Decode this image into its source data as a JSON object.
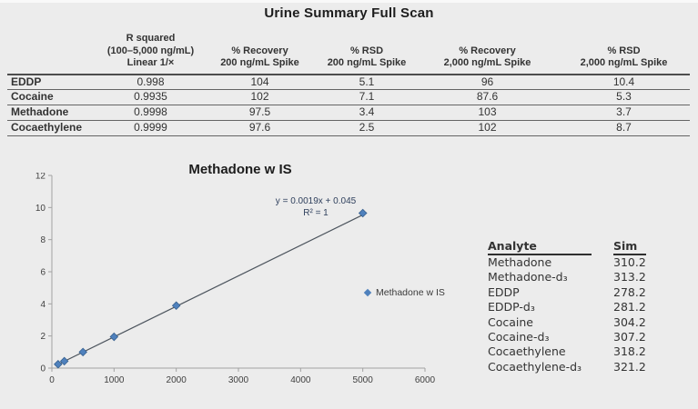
{
  "page": {
    "title": "Urine Summary Full Scan",
    "background_color": "#ececec"
  },
  "summary_table": {
    "col_headers": [
      "R squared\n(100–5,000 ng/mL)\nLinear 1/×",
      "% Recovery\n200 ng/mL Spike",
      "% RSD\n200 ng/mL Spike",
      "% Recovery\n2,000 ng/mL Spike",
      "% RSD\n2,000 ng/mL Spike"
    ],
    "rows": [
      {
        "label": "EDDP",
        "values": [
          "0.998",
          "104",
          "5.1",
          "96",
          "10.4"
        ]
      },
      {
        "label": "Cocaine",
        "values": [
          "0.9935",
          "102",
          "7.1",
          "87.6",
          "5.3"
        ]
      },
      {
        "label": "Methadone",
        "values": [
          "0.9998",
          "97.5",
          "3.4",
          "103",
          "3.7"
        ]
      },
      {
        "label": "Cocaethylene",
        "values": [
          "0.9999",
          "97.6",
          "2.5",
          "102",
          "8.7"
        ]
      }
    ]
  },
  "chart_data": {
    "type": "scatter",
    "title": "Methadone w IS",
    "x": [
      100,
      200,
      500,
      1000,
      2000,
      5000
    ],
    "y": [
      0.24,
      0.43,
      1.0,
      1.95,
      3.89,
      9.65
    ],
    "trendline": {
      "slope": 0.0019,
      "intercept": 0.045,
      "equation": "y = 0.0019x + 0.045",
      "r2": "R² = 1"
    },
    "xlim": [
      0,
      6000
    ],
    "ylim": [
      0,
      12
    ],
    "x_ticks": [
      0,
      1000,
      2000,
      3000,
      4000,
      5000,
      6000
    ],
    "y_ticks": [
      0,
      2,
      4,
      6,
      8,
      10,
      12
    ],
    "legend": "Methadone w IS",
    "legend_position": "right",
    "grid": false,
    "marker": "diamond",
    "marker_color": "#4f81bd",
    "marker_border": "#36608f",
    "line_color": "#4d555e",
    "axis_color": "#a2a2a2",
    "tick_label_color": "#3f3f3f"
  },
  "analyte_table": {
    "headers": [
      "Analyte",
      "Sim"
    ],
    "rows": [
      {
        "name": "Methadone",
        "sim": "310.2"
      },
      {
        "name": "Methadone-d₃",
        "sim": "313.2"
      },
      {
        "name": "EDDP",
        "sim": "278.2"
      },
      {
        "name": "EDDP-d₃",
        "sim": "281.2"
      },
      {
        "name": "Cocaine",
        "sim": "304.2"
      },
      {
        "name": "Cocaine-d₃",
        "sim": "307.2"
      },
      {
        "name": "Cocaethylene",
        "sim": "318.2"
      },
      {
        "name": "Cocaethylene-d₃",
        "sim": "321.2"
      }
    ]
  }
}
